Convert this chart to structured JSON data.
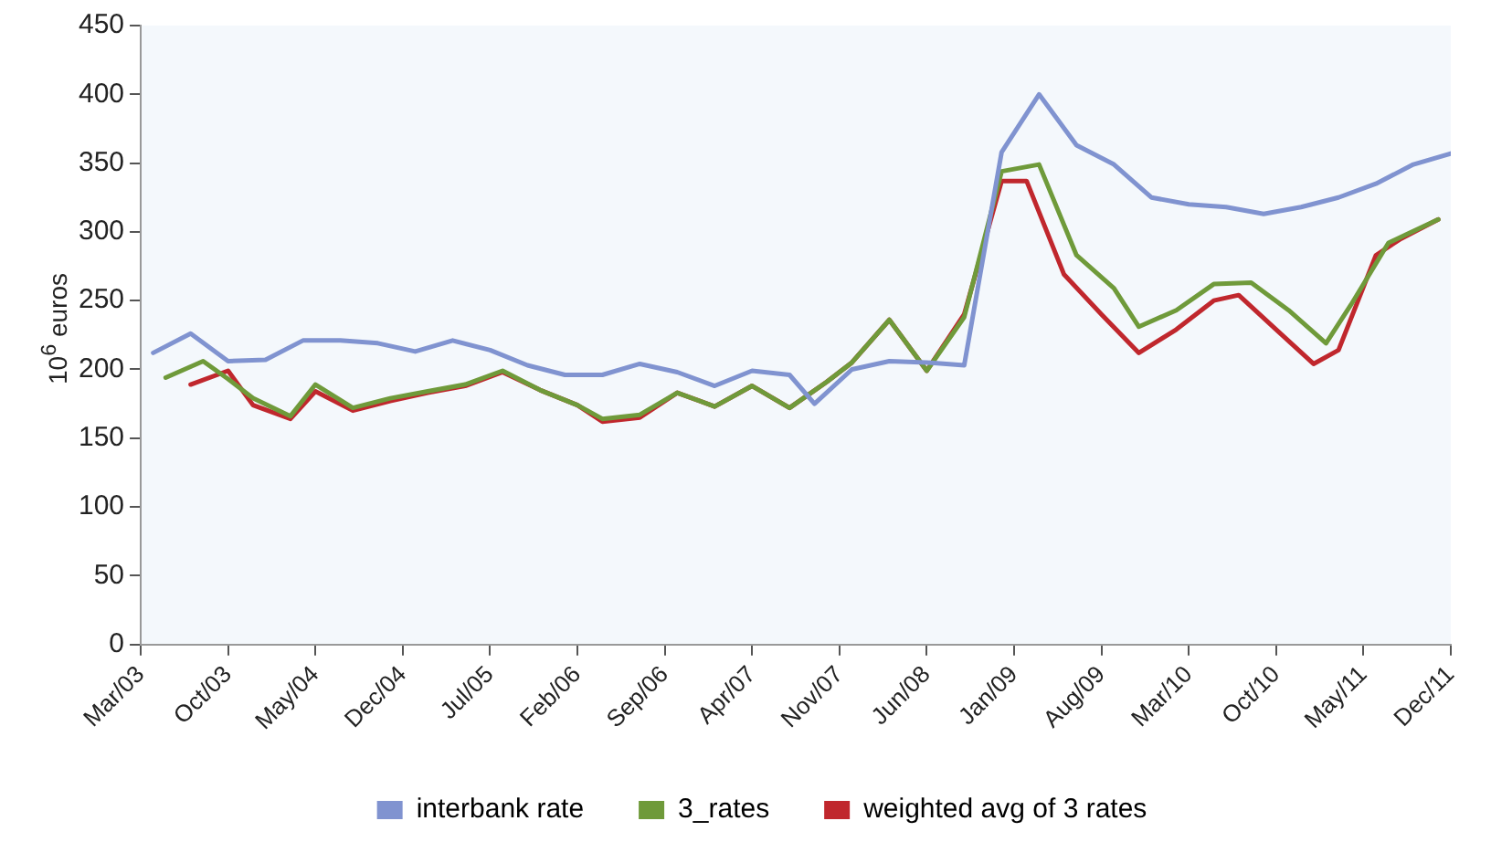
{
  "chart_data": {
    "type": "line",
    "ylabel": "10$^{6}$ euros",
    "xlim": [
      "2003-03",
      "2011-12"
    ],
    "xticks": [
      {
        "value": "2003-03",
        "label": "Mar/03"
      },
      {
        "value": "2003-10",
        "label": "Oct/03"
      },
      {
        "value": "2004-05",
        "label": "May/04"
      },
      {
        "value": "2004-12",
        "label": "Dec/04"
      },
      {
        "value": "2005-07",
        "label": "Jul/05"
      },
      {
        "value": "2006-02",
        "label": "Feb/06"
      },
      {
        "value": "2006-09",
        "label": "Sep/06"
      },
      {
        "value": "2007-04",
        "label": "Apr/07"
      },
      {
        "value": "2007-11",
        "label": "Nov/07"
      },
      {
        "value": "2008-06",
        "label": "Jun/08"
      },
      {
        "value": "2009-01",
        "label": "Jan/09"
      },
      {
        "value": "2009-08",
        "label": "Aug/09"
      },
      {
        "value": "2010-03",
        "label": "Mar/10"
      },
      {
        "value": "2010-10",
        "label": "Oct/10"
      },
      {
        "value": "2011-05",
        "label": "May/11"
      },
      {
        "value": "2011-12",
        "label": "Dec/11"
      }
    ],
    "ylim": [
      0,
      450
    ],
    "yticks": [
      0,
      50,
      100,
      150,
      200,
      250,
      300,
      350,
      400,
      450
    ],
    "grid": false,
    "legend": "bottom",
    "marker": "none",
    "line_style": "solid",
    "series": [
      {
        "name": "interbank rate",
        "color": "#8093d0",
        "x": [
          "2003-04",
          "2003-07",
          "2003-10",
          "2004-01",
          "2004-04",
          "2004-07",
          "2004-10",
          "2005-01",
          "2005-04",
          "2005-07",
          "2005-10",
          "2006-01",
          "2006-04",
          "2006-07",
          "2006-10",
          "2007-01",
          "2007-04",
          "2007-07",
          "2007-09",
          "2007-12",
          "2008-03",
          "2008-06",
          "2008-09",
          "2008-12",
          "2009-03",
          "2009-06",
          "2009-09",
          "2009-12",
          "2010-03",
          "2010-06",
          "2010-09",
          "2010-12",
          "2011-03",
          "2011-06",
          "2011-09",
          "2011-12"
        ],
        "values": [
          212,
          226,
          206,
          207,
          221,
          221,
          219,
          213,
          221,
          214,
          203,
          196,
          196,
          204,
          198,
          188,
          199,
          196,
          175,
          200,
          206,
          205,
          203,
          358,
          400,
          363,
          349,
          325,
          320,
          318,
          313,
          318,
          325,
          335,
          349,
          357
        ]
      },
      {
        "name": "3_rates",
        "color": "#6f9a3a",
        "x": [
          "2003-05",
          "2003-08",
          "2003-10",
          "2003-12",
          "2004-03",
          "2004-05",
          "2004-08",
          "2004-11",
          "2005-02",
          "2005-05",
          "2005-08",
          "2005-11",
          "2006-02",
          "2006-04",
          "2006-07",
          "2006-10",
          "2007-01",
          "2007-04",
          "2007-07",
          "2007-10",
          "2007-12",
          "2008-03",
          "2008-06",
          "2008-09",
          "2008-12",
          "2009-03",
          "2009-06",
          "2009-09",
          "2009-11",
          "2010-02",
          "2010-05",
          "2010-08",
          "2010-11",
          "2011-02",
          "2011-04",
          "2011-07",
          "2011-11"
        ],
        "values": [
          194,
          206,
          193,
          179,
          166,
          189,
          172,
          179,
          184,
          189,
          199,
          185,
          174,
          164,
          167,
          183,
          173,
          188,
          172,
          191,
          205,
          236,
          199,
          238,
          344,
          349,
          283,
          259,
          231,
          243,
          262,
          263,
          243,
          219,
          247,
          292,
          309
        ]
      },
      {
        "name": "weighted avg of 3 rates",
        "color": "#c0272d",
        "x": [
          "2003-07",
          "2003-10",
          "2003-12",
          "2004-03",
          "2004-05",
          "2004-08",
          "2004-11",
          "2005-02",
          "2005-05",
          "2005-08",
          "2005-11",
          "2006-02",
          "2006-04",
          "2006-07",
          "2006-10",
          "2007-01",
          "2007-04",
          "2007-07",
          "2007-10",
          "2007-12",
          "2008-03",
          "2008-06",
          "2008-09",
          "2008-12",
          "2009-02",
          "2009-05",
          "2009-08",
          "2009-11",
          "2010-02",
          "2010-05",
          "2010-07",
          "2010-10",
          "2011-01",
          "2011-03",
          "2011-06",
          "2011-08",
          "2011-11"
        ],
        "values": [
          189,
          199,
          174,
          164,
          184,
          170,
          177,
          183,
          188,
          198,
          185,
          174,
          162,
          165,
          183,
          173,
          188,
          172,
          191,
          205,
          236,
          199,
          240,
          337,
          337,
          269,
          240,
          212,
          229,
          250,
          254,
          229,
          204,
          214,
          283,
          295,
          309
        ]
      }
    ]
  }
}
